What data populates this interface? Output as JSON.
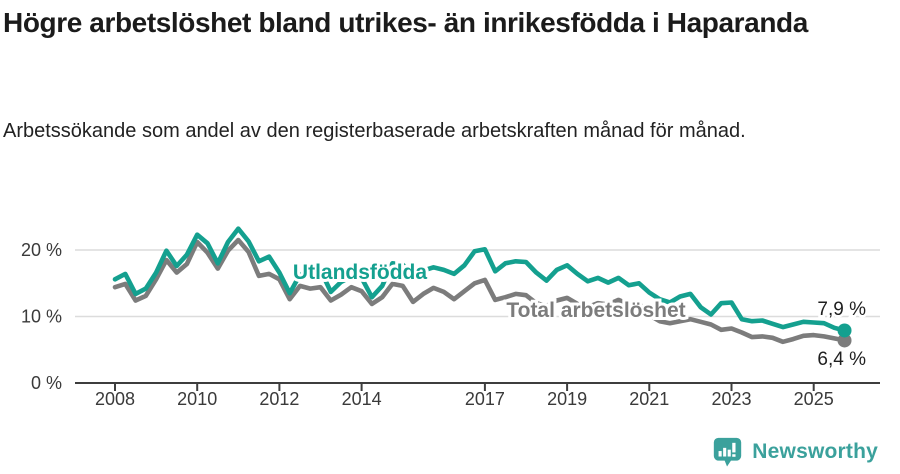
{
  "title": "Högre arbetslöshet bland utrikes- än inrikesfödda i Haparanda",
  "subtitle": "Arbetssökande som andel av den registerbaserade arbetskraften månad för månad.",
  "footer": {
    "brand": "Newsworthy",
    "logo_icon": "speech-bubble-bar-chart-icon"
  },
  "colors": {
    "series_utlandsfodda": "#14a08f",
    "series_total": "#7c7c7c",
    "brand_teal": "#3ba19c",
    "grid": "#dcdcdc",
    "axis": "#3d3d3d",
    "axis_text": "#3a3a3a",
    "text_dark": "#1b1b1b"
  },
  "chart_data": {
    "type": "line",
    "title": "Högre arbetslöshet bland utrikes- än inrikesfödda i Haparanda",
    "subtitle": "Arbetssökande som andel av den registerbaserade arbetskraften månad för månad.",
    "x_unit": "decimal_year",
    "grid": "horizontal",
    "legend": "inline-labels",
    "xlim": [
      2008,
      2025.75
    ],
    "ylim": [
      0,
      26
    ],
    "yticks": [
      {
        "value": 0,
        "label": "0 %"
      },
      {
        "value": 10,
        "label": "10 %"
      },
      {
        "value": 20,
        "label": "20 %"
      }
    ],
    "xticks": [
      {
        "value": 2008,
        "label": "2008"
      },
      {
        "value": 2010,
        "label": "2010"
      },
      {
        "value": 2012,
        "label": "2012"
      },
      {
        "value": 2014,
        "label": "2014"
      },
      {
        "value": 2017,
        "label": "2017"
      },
      {
        "value": 2019,
        "label": "2019"
      },
      {
        "value": 2021,
        "label": "2021"
      },
      {
        "value": 2023,
        "label": "2023"
      },
      {
        "value": 2025,
        "label": "2025"
      }
    ],
    "x": [
      2008,
      2008.25,
      2008.5,
      2008.75,
      2009,
      2009.25,
      2009.5,
      2009.75,
      2010,
      2010.25,
      2010.5,
      2010.75,
      2011,
      2011.25,
      2011.5,
      2011.75,
      2012,
      2012.25,
      2012.5,
      2012.75,
      2013,
      2013.25,
      2013.5,
      2013.75,
      2014,
      2014.25,
      2014.5,
      2014.75,
      2015,
      2015.25,
      2015.5,
      2015.75,
      2016,
      2016.25,
      2016.5,
      2016.75,
      2017,
      2017.25,
      2017.5,
      2017.75,
      2018,
      2018.25,
      2018.5,
      2018.75,
      2019,
      2019.25,
      2019.5,
      2019.75,
      2020,
      2020.25,
      2020.5,
      2020.75,
      2021,
      2021.25,
      2021.5,
      2021.75,
      2022,
      2022.25,
      2022.5,
      2022.75,
      2023,
      2023.25,
      2023.5,
      2023.75,
      2024,
      2024.25,
      2024.5,
      2024.75,
      2025,
      2025.25,
      2025.5,
      2025.75
    ],
    "series": [
      {
        "name": "Utlandsfödda",
        "color": "#14a08f",
        "end_label": "7,9 %",
        "values": [
          15.6,
          16.4,
          13.4,
          14.2,
          16.6,
          19.9,
          17.6,
          19.3,
          22.3,
          21.0,
          18.0,
          21.2,
          23.2,
          21.3,
          18.3,
          19.0,
          16.6,
          13.5,
          16.3,
          16.8,
          17.0,
          13.7,
          15.2,
          16.0,
          15.8,
          12.9,
          14.6,
          18.0,
          17.8,
          16.2,
          16.9,
          17.4,
          17.0,
          16.4,
          17.7,
          19.8,
          20.1,
          16.8,
          18.0,
          18.3,
          18.2,
          16.6,
          15.4,
          17.0,
          17.7,
          16.4,
          15.3,
          15.8,
          15.1,
          15.8,
          14.7,
          15.0,
          13.6,
          12.6,
          12.1,
          13.0,
          13.4,
          11.4,
          10.3,
          12.0,
          12.1,
          9.6,
          9.3,
          9.4,
          8.9,
          8.4,
          8.8,
          9.2,
          9.1,
          9.0,
          8.3,
          7.9
        ]
      },
      {
        "name": "Total arbetslöshet",
        "color": "#7c7c7c",
        "end_label": "6,4 %",
        "values": [
          14.4,
          14.9,
          12.4,
          13.1,
          15.6,
          18.5,
          16.6,
          17.9,
          21.2,
          19.6,
          17.2,
          19.9,
          21.5,
          19.7,
          16.1,
          16.4,
          15.6,
          12.6,
          14.6,
          14.2,
          14.4,
          12.4,
          13.3,
          14.4,
          13.8,
          11.9,
          12.9,
          14.9,
          14.6,
          12.2,
          13.4,
          14.3,
          13.7,
          12.6,
          13.8,
          15.0,
          15.5,
          12.5,
          12.9,
          13.4,
          13.2,
          12.0,
          11.6,
          12.4,
          12.8,
          11.9,
          11.4,
          12.0,
          11.8,
          12.5,
          11.8,
          12.0,
          10.2,
          9.3,
          9.0,
          9.3,
          9.6,
          9.2,
          8.8,
          8.0,
          8.2,
          7.6,
          6.9,
          7.0,
          6.8,
          6.2,
          6.6,
          7.1,
          7.2,
          7.0,
          6.7,
          6.4
        ]
      }
    ]
  }
}
